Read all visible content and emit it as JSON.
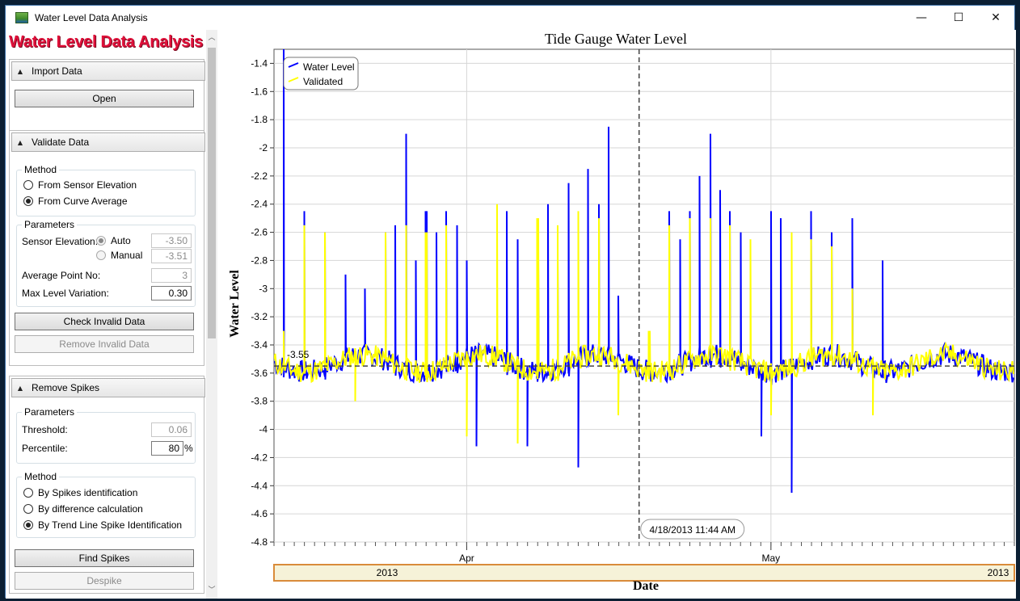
{
  "window": {
    "title": "Water Level Data Analysis",
    "controls": {
      "minimize": "—",
      "maximize": "☐",
      "close": "✕"
    }
  },
  "app_header": "Water Level Data Analysis",
  "import_section": {
    "title": "Import Data",
    "open_button": "Open"
  },
  "validate_section": {
    "title": "Validate Data",
    "method_label": "Method",
    "method_options": [
      "From Sensor Elevation",
      "From Curve Average"
    ],
    "method_selected": "From Curve Average",
    "parameters_label": "Parameters",
    "sensor_elevation_label": "Sensor Elevation:",
    "auto_label": "Auto",
    "manual_label": "Manual",
    "auto_value": "-3.50",
    "manual_value": "-3.51",
    "average_point_label": "Average Point No:",
    "average_point_value": "3",
    "max_variation_label": "Max Level Variation:",
    "max_variation_value": "0.30",
    "check_button": "Check Invalid Data",
    "remove_button": "Remove Invalid Data"
  },
  "spikes_section": {
    "title": "Remove Spikes",
    "parameters_label": "Parameters",
    "threshold_label": "Threshold:",
    "threshold_value": "0.06",
    "percentile_label": "Percentile:",
    "percentile_value": "80",
    "percent_unit": "%",
    "method_label": "Method",
    "method_options": [
      "By Spikes identification",
      "By difference calculation",
      "By Trend Line Spike Identification"
    ],
    "method_selected": "By Trend Line Spike Identification",
    "find_button": "Find Spikes",
    "despike_button": "Despike"
  },
  "chart_data": {
    "type": "line",
    "title": "Tide Gauge Water Level",
    "xlabel": "Date",
    "ylabel": "Water Level",
    "ylim": [
      -4.8,
      -1.3
    ],
    "yticks": [
      -1.4,
      -1.6,
      -1.8,
      -2,
      -2.2,
      -2.4,
      -2.6,
      -2.8,
      -3,
      -3.2,
      -3.4,
      -3.6,
      -3.8,
      -4,
      -4.2,
      -4.4,
      -4.6,
      -4.8
    ],
    "xlim": [
      "2013-03-13",
      "2013-05-25"
    ],
    "month_labels": [
      {
        "date": "2013-04-01",
        "label": "Apr"
      },
      {
        "date": "2013-05-01",
        "label": "May"
      }
    ],
    "year_labels": [
      "2013",
      "2013"
    ],
    "grid": true,
    "legend": {
      "placement": "top-left",
      "entries": [
        "Water Level",
        "Validated"
      ]
    },
    "colors": {
      "Water Level": "#0000ff",
      "Validated": "#ffff00"
    },
    "reference_line": {
      "value": -3.55,
      "label": "-3.55"
    },
    "cursor": {
      "date": "2013-04-18",
      "label": "4/18/2013 11:44 AM"
    },
    "baseline": -3.55,
    "series": [
      {
        "name": "Water Level",
        "spikes": [
          {
            "x": "2013-03-14",
            "y": -1.3
          },
          {
            "x": "2013-03-14",
            "y": -3.63
          },
          {
            "x": "2013-03-16",
            "y": -2.45
          },
          {
            "x": "2013-03-18",
            "y": -2.6
          },
          {
            "x": "2013-03-20",
            "y": -2.9
          },
          {
            "x": "2013-03-22",
            "y": -3.0
          },
          {
            "x": "2013-03-24",
            "y": -2.6
          },
          {
            "x": "2013-03-25",
            "y": -2.55
          },
          {
            "x": "2013-03-26",
            "y": -1.9
          },
          {
            "x": "2013-03-27",
            "y": -2.8
          },
          {
            "x": "2013-03-28",
            "y": -2.45
          },
          {
            "x": "2013-03-29",
            "y": -2.6
          },
          {
            "x": "2013-03-30",
            "y": -2.45
          },
          {
            "x": "2013-03-31",
            "y": -2.55
          },
          {
            "x": "2013-04-01",
            "y": -2.8
          },
          {
            "x": "2013-04-02",
            "y": -4.12
          },
          {
            "x": "2013-04-05",
            "y": -2.45
          },
          {
            "x": "2013-04-06",
            "y": -2.65
          },
          {
            "x": "2013-04-07",
            "y": -4.12
          },
          {
            "x": "2013-04-08",
            "y": -2.8
          },
          {
            "x": "2013-04-09",
            "y": -2.4
          },
          {
            "x": "2013-04-10",
            "y": -2.8
          },
          {
            "x": "2013-04-11",
            "y": -2.25
          },
          {
            "x": "2013-04-12",
            "y": -4.27
          },
          {
            "x": "2013-04-13",
            "y": -2.15
          },
          {
            "x": "2013-04-14",
            "y": -2.4
          },
          {
            "x": "2013-04-15",
            "y": -1.85
          },
          {
            "x": "2013-04-16",
            "y": -3.05
          },
          {
            "x": "2013-04-21",
            "y": -2.45
          },
          {
            "x": "2013-04-22",
            "y": -2.65
          },
          {
            "x": "2013-04-23",
            "y": -2.45
          },
          {
            "x": "2013-04-24",
            "y": -2.2
          },
          {
            "x": "2013-04-25",
            "y": -1.9
          },
          {
            "x": "2013-04-26",
            "y": -2.3
          },
          {
            "x": "2013-04-27",
            "y": -2.45
          },
          {
            "x": "2013-04-28",
            "y": -2.6
          },
          {
            "x": "2013-04-30",
            "y": -4.05
          },
          {
            "x": "2013-05-01",
            "y": -2.45
          },
          {
            "x": "2013-05-02",
            "y": -2.5
          },
          {
            "x": "2013-05-03",
            "y": -4.45
          },
          {
            "x": "2013-05-05",
            "y": -2.45
          },
          {
            "x": "2013-05-07",
            "y": -2.6
          },
          {
            "x": "2013-05-09",
            "y": -2.5
          },
          {
            "x": "2013-05-12",
            "y": -2.8
          }
        ]
      },
      {
        "name": "Validated",
        "spikes": [
          {
            "x": "2013-03-14",
            "y": -3.3
          },
          {
            "x": "2013-03-16",
            "y": -2.55
          },
          {
            "x": "2013-03-18",
            "y": -2.6
          },
          {
            "x": "2013-03-21",
            "y": -3.8
          },
          {
            "x": "2013-03-24",
            "y": -2.6
          },
          {
            "x": "2013-03-26",
            "y": -2.55
          },
          {
            "x": "2013-03-28",
            "y": -2.6
          },
          {
            "x": "2013-03-30",
            "y": -2.55
          },
          {
            "x": "2013-04-01",
            "y": -4.05
          },
          {
            "x": "2013-04-04",
            "y": -2.4
          },
          {
            "x": "2013-04-06",
            "y": -4.1
          },
          {
            "x": "2013-04-08",
            "y": -2.5
          },
          {
            "x": "2013-04-10",
            "y": -2.55
          },
          {
            "x": "2013-04-12",
            "y": -2.45
          },
          {
            "x": "2013-04-14",
            "y": -2.5
          },
          {
            "x": "2013-04-16",
            "y": -3.9
          },
          {
            "x": "2013-04-19",
            "y": -3.3
          },
          {
            "x": "2013-04-21",
            "y": -2.55
          },
          {
            "x": "2013-04-23",
            "y": -2.5
          },
          {
            "x": "2013-04-25",
            "y": -2.5
          },
          {
            "x": "2013-04-27",
            "y": -2.55
          },
          {
            "x": "2013-04-29",
            "y": -2.65
          },
          {
            "x": "2013-05-01",
            "y": -3.9
          },
          {
            "x": "2013-05-03",
            "y": -2.6
          },
          {
            "x": "2013-05-05",
            "y": -2.65
          },
          {
            "x": "2013-05-07",
            "y": -2.7
          },
          {
            "x": "2013-05-09",
            "y": -3.0
          },
          {
            "x": "2013-05-11",
            "y": -3.9
          }
        ]
      }
    ]
  }
}
